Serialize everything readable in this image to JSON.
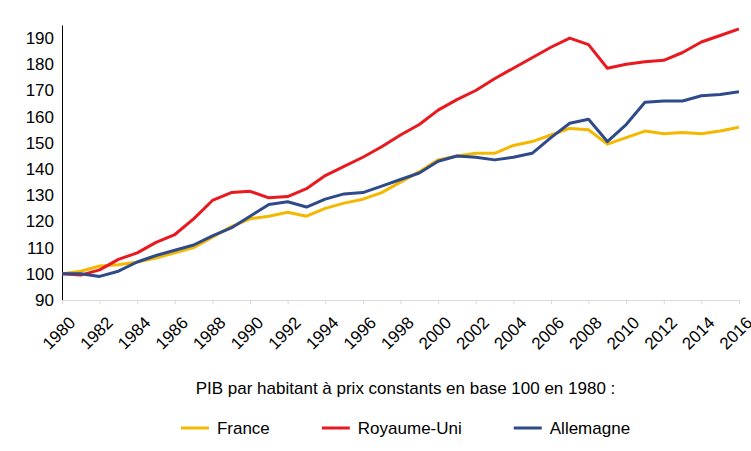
{
  "chart_data": {
    "type": "line",
    "title": "PIB par habitant à prix constants en base 100 en 1980 :",
    "x": [
      1980,
      1981,
      1982,
      1983,
      1984,
      1985,
      1986,
      1987,
      1988,
      1989,
      1990,
      1991,
      1992,
      1993,
      1994,
      1995,
      1996,
      1997,
      1998,
      1999,
      2000,
      2001,
      2002,
      2003,
      2004,
      2005,
      2006,
      2007,
      2008,
      2009,
      2010,
      2011,
      2012,
      2013,
      2014,
      2015,
      2016
    ],
    "xlim": [
      1980,
      2016
    ],
    "xticks": [
      1980,
      1982,
      1984,
      1986,
      1988,
      1990,
      1992,
      1994,
      1996,
      1998,
      2000,
      2002,
      2004,
      2006,
      2008,
      2010,
      2012,
      2014,
      2016
    ],
    "ylim": [
      90,
      195
    ],
    "yticks": [
      90,
      100,
      110,
      120,
      130,
      140,
      150,
      160,
      170,
      180,
      190
    ],
    "grid": false,
    "legend": "bottom",
    "series": [
      {
        "name": "France",
        "color": "#f5b800",
        "values": [
          100,
          101,
          103,
          103.5,
          104.5,
          106,
          108,
          110,
          114,
          118,
          121,
          122,
          123.5,
          122,
          125,
          127,
          128.5,
          131,
          135,
          139,
          143.5,
          145,
          146,
          146,
          149,
          150.5,
          153,
          155.5,
          155,
          149.5,
          152,
          154.5,
          153.5,
          154,
          153.5,
          154.5,
          156
        ]
      },
      {
        "name": "Royaume-Uni",
        "color": "#e8191f",
        "values": [
          100,
          99.5,
          101.5,
          105.5,
          108,
          112,
          115,
          121,
          128,
          131,
          131.5,
          129,
          129.5,
          132.5,
          137.5,
          141,
          144.5,
          148.5,
          153,
          157,
          162.5,
          166.5,
          170,
          174.5,
          178.5,
          182.5,
          186.5,
          190,
          187.5,
          178.5,
          180,
          181,
          181.5,
          184.5,
          188.5,
          191,
          193.5
        ]
      },
      {
        "name": "Allemagne",
        "color": "#2e4a8b",
        "values": [
          100,
          100,
          99,
          101,
          104.5,
          107,
          109,
          111,
          114.5,
          117.5,
          122,
          126.5,
          127.5,
          125.5,
          128.5,
          130.5,
          131,
          133.5,
          136,
          138.5,
          143,
          145,
          144.5,
          143.5,
          144.5,
          146,
          152,
          157.5,
          159,
          150.5,
          157,
          165.5,
          166,
          166,
          168,
          168.5,
          169.5
        ]
      }
    ]
  }
}
